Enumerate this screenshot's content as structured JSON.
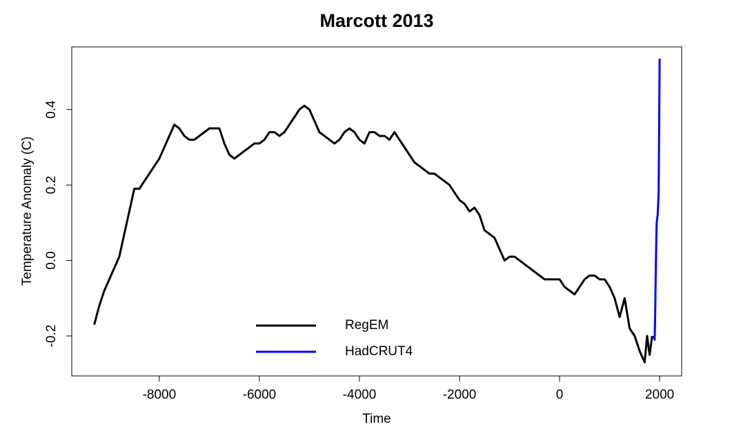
{
  "chart_data": {
    "type": "line",
    "title": "Marcott 2013",
    "xlabel": "Time",
    "ylabel": "Temperature Anomaly (C)",
    "xlim": [
      -9750,
      2440
    ],
    "ylim": [
      -0.306,
      0.566
    ],
    "xticks": [
      -8000,
      -6000,
      -4000,
      -2000,
      0,
      2000
    ],
    "yticks": [
      -0.2,
      {
        "value": 0,
        "label": "0.0"
      },
      0.2,
      0.4
    ],
    "legend": "bottom",
    "series": [
      {
        "name": "RegEM",
        "color": "#000000",
        "x": [
          -9300,
          -9200,
          -9100,
          -9000,
          -8900,
          -8800,
          -8700,
          -8600,
          -8500,
          -8400,
          -8300,
          -8200,
          -8100,
          -8000,
          -7900,
          -7800,
          -7700,
          -7600,
          -7500,
          -7400,
          -7300,
          -7200,
          -7100,
          -7000,
          -6900,
          -6800,
          -6700,
          -6600,
          -6500,
          -6400,
          -6300,
          -6200,
          -6100,
          -6000,
          -5900,
          -5800,
          -5700,
          -5600,
          -5500,
          -5400,
          -5300,
          -5200,
          -5100,
          -5000,
          -4900,
          -4800,
          -4700,
          -4600,
          -4500,
          -4400,
          -4300,
          -4200,
          -4100,
          -4000,
          -3900,
          -3800,
          -3700,
          -3600,
          -3500,
          -3400,
          -3300,
          -3200,
          -3100,
          -3000,
          -2900,
          -2800,
          -2700,
          -2600,
          -2500,
          -2400,
          -2300,
          -2200,
          -2100,
          -2000,
          -1900,
          -1800,
          -1700,
          -1600,
          -1500,
          -1400,
          -1300,
          -1200,
          -1100,
          -1000,
          -900,
          -800,
          -700,
          -600,
          -500,
          -400,
          -300,
          -200,
          -100,
          0,
          100,
          200,
          300,
          400,
          500,
          600,
          700,
          800,
          900,
          1000,
          1100,
          1200,
          1300,
          1400,
          1500,
          1600,
          1700,
          1750,
          1800,
          1850
        ],
        "values": [
          -0.17,
          -0.12,
          -0.08,
          -0.05,
          -0.02,
          0.01,
          0.07,
          0.13,
          0.19,
          0.19,
          0.21,
          0.23,
          0.25,
          0.27,
          0.3,
          0.33,
          0.36,
          0.35,
          0.33,
          0.32,
          0.32,
          0.33,
          0.34,
          0.35,
          0.35,
          0.35,
          0.31,
          0.28,
          0.27,
          0.28,
          0.29,
          0.3,
          0.31,
          0.31,
          0.32,
          0.34,
          0.34,
          0.33,
          0.34,
          0.36,
          0.38,
          0.4,
          0.41,
          0.4,
          0.37,
          0.34,
          0.33,
          0.32,
          0.31,
          0.32,
          0.34,
          0.35,
          0.34,
          0.32,
          0.31,
          0.34,
          0.34,
          0.33,
          0.33,
          0.32,
          0.34,
          0.32,
          0.3,
          0.28,
          0.26,
          0.25,
          0.24,
          0.23,
          0.23,
          0.22,
          0.21,
          0.2,
          0.18,
          0.16,
          0.15,
          0.13,
          0.14,
          0.12,
          0.08,
          0.07,
          0.06,
          0.03,
          0.0,
          0.01,
          0.01,
          0.0,
          -0.01,
          -0.02,
          -0.03,
          -0.04,
          -0.05,
          -0.05,
          -0.05,
          -0.05,
          -0.07,
          -0.08,
          -0.09,
          -0.07,
          -0.05,
          -0.04,
          -0.04,
          -0.05,
          -0.05,
          -0.07,
          -0.1,
          -0.15,
          -0.1,
          -0.18,
          -0.2,
          -0.24,
          -0.27,
          -0.2,
          -0.25,
          -0.2
        ]
      },
      {
        "name": "HadCRUT4",
        "color": "#0000ff",
        "x": [
          1880,
          1900,
          1910,
          1920,
          1930,
          1940,
          1950,
          1960,
          1970,
          1980,
          1990,
          2000
        ],
        "values": [
          -0.2,
          -0.21,
          -0.15,
          -0.05,
          0.03,
          0.1,
          0.11,
          0.12,
          0.15,
          0.18,
          0.35,
          0.535
        ]
      }
    ]
  }
}
